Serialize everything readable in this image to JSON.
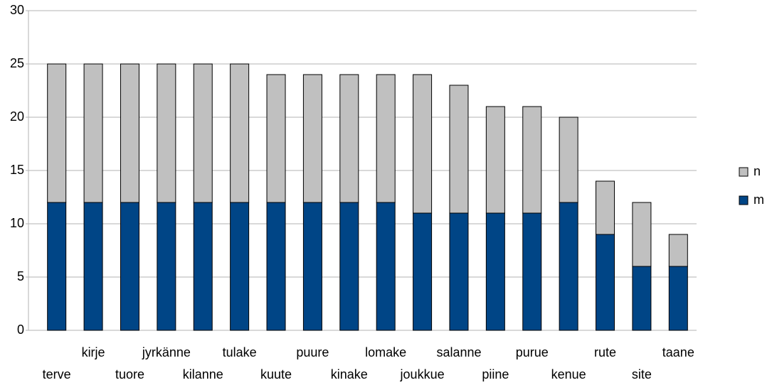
{
  "chart_data": {
    "type": "stacked_bar",
    "categories": [
      "terve",
      "kirje",
      "tuore",
      "jyrkänne",
      "kilanne",
      "tulake",
      "kuute",
      "puure",
      "kinake",
      "lomake",
      "joukkue",
      "salanne",
      "piine",
      "purue",
      "kenue",
      "rute",
      "site",
      "taane"
    ],
    "series": [
      {
        "name": "m",
        "color": "#004586",
        "values": [
          12,
          12,
          12,
          12,
          12,
          12,
          12,
          12,
          12,
          12,
          11,
          11,
          11,
          11,
          12,
          9,
          6,
          6
        ]
      },
      {
        "name": "n",
        "color": "#c0c0c0",
        "values": [
          13,
          13,
          13,
          13,
          13,
          13,
          12,
          12,
          12,
          12,
          13,
          12,
          10,
          10,
          8,
          5,
          6,
          3
        ]
      }
    ],
    "ylim": [
      0,
      30
    ],
    "yticks": [
      0,
      5,
      10,
      15,
      20,
      25,
      30
    ],
    "grid": true,
    "legend": "right"
  }
}
